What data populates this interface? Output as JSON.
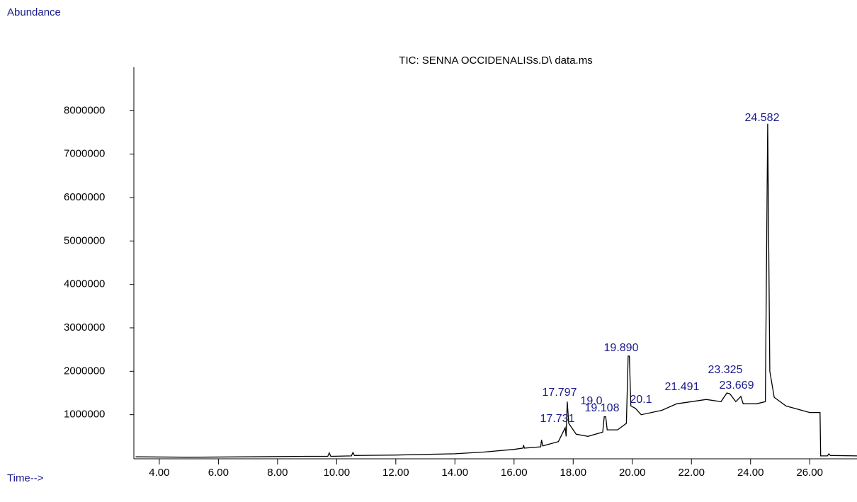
{
  "chart_data": {
    "type": "line",
    "title": "TIC: SENNA OCCIDENALISs.D\\ data.ms",
    "y_label": "Abundance",
    "x_label": "Time-->",
    "color": "#000000",
    "x": [
      3.2,
      5,
      7,
      9,
      9.7,
      9.75,
      9.8,
      10.5,
      10.55,
      10.6,
      12,
      14,
      15,
      16,
      16.3,
      16.32,
      16.35,
      16.9,
      16.93,
      16.97,
      17.5,
      17.73,
      17.76,
      17.8,
      17.85,
      18.0,
      18.1,
      18.5,
      19.0,
      19.05,
      19.1,
      19.15,
      19.5,
      19.8,
      19.86,
      19.9,
      19.95,
      20.1,
      20.3,
      21.0,
      21.5,
      22.0,
      22.5,
      23.0,
      23.2,
      23.3,
      23.5,
      23.67,
      23.75,
      24.2,
      24.5,
      24.58,
      24.65,
      24.8,
      25.2,
      26.0,
      26.35,
      26.37,
      26.6,
      26.65,
      26.7,
      27.6
    ],
    "values": [
      30000,
      20000,
      30000,
      40000,
      40000,
      120000,
      40000,
      50000,
      130000,
      60000,
      70000,
      100000,
      140000,
      200000,
      230000,
      300000,
      230000,
      260000,
      420000,
      280000,
      380000,
      700000,
      500000,
      1300000,
      800000,
      650000,
      550000,
      500000,
      600000,
      950000,
      950000,
      650000,
      650000,
      800000,
      2350000,
      2350000,
      1200000,
      1150000,
      1000000,
      1100000,
      1250000,
      1300000,
      1350000,
      1300000,
      1500000,
      1480000,
      1300000,
      1420000,
      1250000,
      1250000,
      1300000,
      7700000,
      2000000,
      1400000,
      1200000,
      1050000,
      1050000,
      50000,
      50000,
      100000,
      60000,
      50000
    ],
    "xlim": [
      3.14,
      27.6
    ],
    "ylim": [
      0,
      9000000
    ],
    "xticks": [
      {
        "value": 4,
        "label": "4.00"
      },
      {
        "value": 6,
        "label": "6.00"
      },
      {
        "value": 8,
        "label": "8.00"
      },
      {
        "value": 10,
        "label": "10.00"
      },
      {
        "value": 12,
        "label": "12.00"
      },
      {
        "value": 14,
        "label": "14.00"
      },
      {
        "value": 16,
        "label": "16.00"
      },
      {
        "value": 18,
        "label": "18.00"
      },
      {
        "value": 20,
        "label": "20.00"
      },
      {
        "value": 22,
        "label": "22.00"
      },
      {
        "value": 24,
        "label": "24.00"
      },
      {
        "value": 26,
        "label": "26.00"
      }
    ],
    "yticks": [
      1000000,
      2000000,
      3000000,
      4000000,
      5000000,
      6000000,
      7000000,
      8000000
    ],
    "annotations": [
      "24.582",
      "19.890",
      "23.325",
      "23.669",
      "21.491",
      "17.797",
      "17.731",
      "19.108",
      "20.1",
      "19.0"
    ]
  }
}
